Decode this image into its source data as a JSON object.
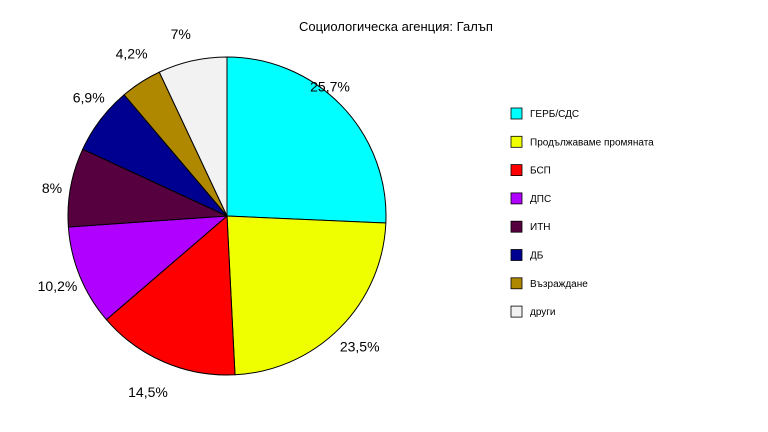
{
  "chart_data": {
    "type": "pie",
    "title": "Социологическа агенция: Галъп",
    "start_angle_deg": 0,
    "direction": "clockwise",
    "legend_position": "right",
    "slices": [
      {
        "name": "ГЕРБ/СДС",
        "value": 25.7,
        "label": "25,7%",
        "color": "#00ffff"
      },
      {
        "name": "Продължаваме промяната",
        "value": 23.5,
        "label": "23,5%",
        "color": "#f0ff00"
      },
      {
        "name": "БСП",
        "value": 14.5,
        "label": "14,5%",
        "color": "#ff0000"
      },
      {
        "name": "ДПС",
        "value": 10.2,
        "label": "10,2%",
        "color": "#b000ff"
      },
      {
        "name": "ИТН",
        "value": 8,
        "label": "8%",
        "color": "#560040"
      },
      {
        "name": "ДБ",
        "value": 6.9,
        "label": "6,9%",
        "color": "#000090"
      },
      {
        "name": "Възраждане",
        "value": 4.2,
        "label": "4,2%",
        "color": "#b08800"
      },
      {
        "name": "други",
        "value": 7,
        "label": "7%",
        "color": "#f2f2f2"
      }
    ]
  }
}
